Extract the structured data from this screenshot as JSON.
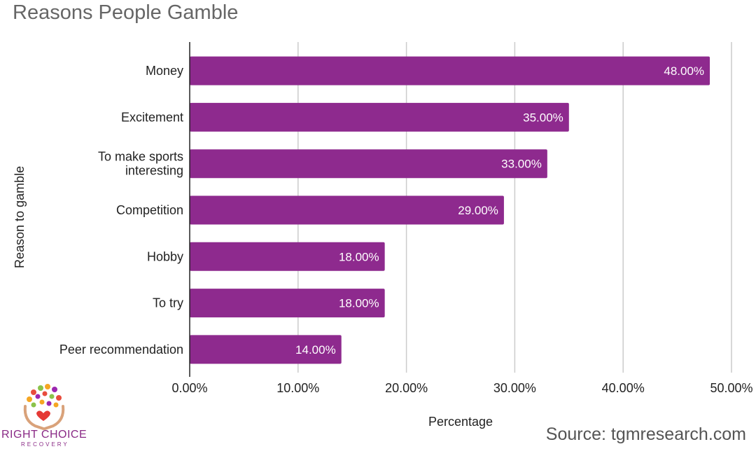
{
  "chart_data": {
    "type": "bar",
    "orientation": "horizontal",
    "title": "Reasons People Gamble",
    "xlabel": "Percentage",
    "ylabel": "Reason to gamble",
    "categories": [
      [
        "Money"
      ],
      [
        "Excitement"
      ],
      [
        "To make sports",
        "interesting"
      ],
      [
        "Competition"
      ],
      [
        "Hobby"
      ],
      [
        "To try"
      ],
      [
        "Peer recommendation"
      ]
    ],
    "values": [
      48,
      35,
      33,
      29,
      18,
      18,
      14
    ],
    "value_labels": [
      "48.00%",
      "35.00%",
      "33.00%",
      "29.00%",
      "18.00%",
      "18.00%",
      "14.00%"
    ],
    "xlim": [
      0,
      50
    ],
    "x_ticks": [
      0,
      10,
      20,
      30,
      40,
      50
    ],
    "x_tick_labels": [
      "0.00%",
      "10.00%",
      "20.00%",
      "30.00%",
      "40.00%",
      "50.00%"
    ],
    "grid": true,
    "bar_color": "#8e2a8e",
    "legend": "none"
  },
  "source": "Source: tgmresearch.com",
  "logo": {
    "text": "RIGHT CHOICE",
    "subtext": "RECOVERY",
    "icon": "hands-tree-logo-icon"
  }
}
